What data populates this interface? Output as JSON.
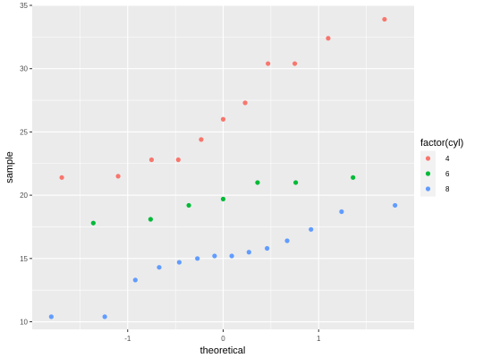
{
  "chart_data": {
    "type": "scatter",
    "title": "",
    "xlabel": "theoretical",
    "ylabel": "sample",
    "xlim": [
      -2.0,
      2.0
    ],
    "ylim": [
      9.4,
      35.0
    ],
    "x_ticks": [
      -1,
      0,
      1
    ],
    "x_tick_labels": [
      "-1",
      "0",
      "1"
    ],
    "x_minor_ticks": [
      -1.5,
      -0.5,
      0.5,
      1.5
    ],
    "y_ticks": [
      10,
      15,
      20,
      25,
      30,
      35
    ],
    "y_tick_labels": [
      "10",
      "15",
      "20",
      "25",
      "30",
      "35"
    ],
    "y_minor_ticks": [
      12.5,
      17.5,
      22.5,
      27.5,
      32.5
    ],
    "grid": true,
    "legend": {
      "title": "factor(cyl)",
      "position": "right"
    },
    "series": [
      {
        "name": "4",
        "color": "#F8766D",
        "points": [
          {
            "x": -1.69,
            "y": 21.4
          },
          {
            "x": -1.1,
            "y": 21.5
          },
          {
            "x": -0.75,
            "y": 22.8
          },
          {
            "x": -0.47,
            "y": 22.8
          },
          {
            "x": -0.23,
            "y": 24.4
          },
          {
            "x": 0.0,
            "y": 26.0
          },
          {
            "x": 0.23,
            "y": 27.3
          },
          {
            "x": 0.47,
            "y": 30.4
          },
          {
            "x": 0.75,
            "y": 30.4
          },
          {
            "x": 1.1,
            "y": 32.4
          },
          {
            "x": 1.69,
            "y": 33.9
          }
        ]
      },
      {
        "name": "6",
        "color": "#00BA38",
        "points": [
          {
            "x": -1.36,
            "y": 17.8
          },
          {
            "x": -0.76,
            "y": 18.1
          },
          {
            "x": -0.36,
            "y": 19.2
          },
          {
            "x": 0.0,
            "y": 19.7
          },
          {
            "x": 0.36,
            "y": 21.0
          },
          {
            "x": 0.76,
            "y": 21.0
          },
          {
            "x": 1.36,
            "y": 21.4
          }
        ]
      },
      {
        "name": "8",
        "color": "#619CFF",
        "points": [
          {
            "x": -1.8,
            "y": 10.4
          },
          {
            "x": -1.24,
            "y": 10.4
          },
          {
            "x": -0.92,
            "y": 13.3
          },
          {
            "x": -0.67,
            "y": 14.3
          },
          {
            "x": -0.46,
            "y": 14.7
          },
          {
            "x": -0.27,
            "y": 15.0
          },
          {
            "x": -0.09,
            "y": 15.2
          },
          {
            "x": 0.09,
            "y": 15.2
          },
          {
            "x": 0.27,
            "y": 15.5
          },
          {
            "x": 0.46,
            "y": 15.8
          },
          {
            "x": 0.67,
            "y": 16.4
          },
          {
            "x": 0.92,
            "y": 17.3
          },
          {
            "x": 1.24,
            "y": 18.7
          },
          {
            "x": 1.8,
            "y": 19.2
          }
        ]
      }
    ]
  }
}
